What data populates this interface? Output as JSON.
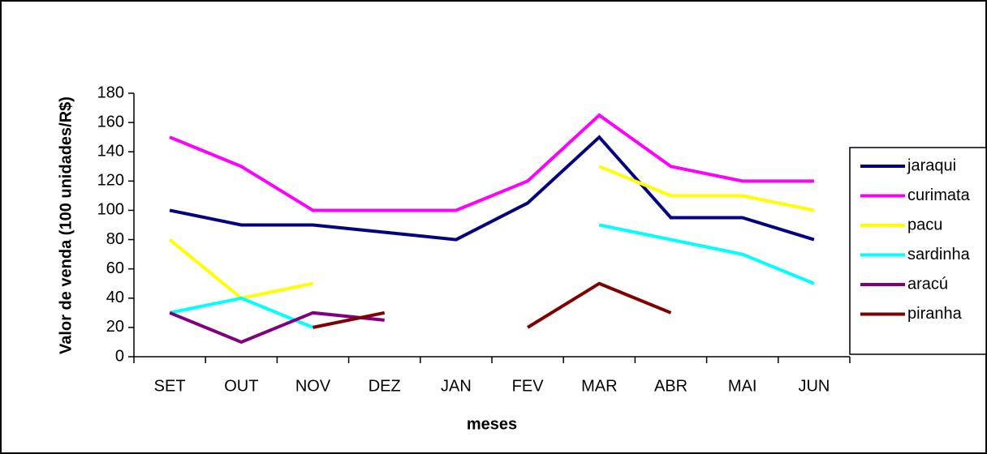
{
  "chart_data": {
    "type": "line",
    "x_label": "meses",
    "y_label": "Valor de venda (100 unidades/R$)",
    "categories": [
      "SET",
      "OUT",
      "NOV",
      "DEZ",
      "JAN",
      "FEV",
      "MAR",
      "ABR",
      "MAI",
      "JUN"
    ],
    "series": [
      {
        "name": "jaraqui",
        "color": "#000080",
        "values": [
          100,
          90,
          90,
          85,
          80,
          105,
          150,
          95,
          95,
          80
        ]
      },
      {
        "name": "curimata",
        "color": "#ff00ff",
        "values": [
          150,
          130,
          100,
          100,
          100,
          120,
          165,
          130,
          120,
          120
        ]
      },
      {
        "name": "pacu",
        "color": "#ffff00",
        "values": [
          80,
          40,
          50,
          null,
          null,
          null,
          130,
          110,
          110,
          100
        ]
      },
      {
        "name": "sardinha",
        "color": "#00ffff",
        "values": [
          30,
          40,
          20,
          null,
          null,
          null,
          90,
          80,
          70,
          50
        ]
      },
      {
        "name": "aracú",
        "color": "#800080",
        "values": [
          30,
          10,
          30,
          25,
          null,
          null,
          null,
          null,
          null,
          null
        ]
      },
      {
        "name": "piranha",
        "color": "#800000",
        "values": [
          null,
          null,
          20,
          30,
          null,
          20,
          50,
          30,
          null,
          null
        ]
      }
    ],
    "ylim": [
      0,
      180
    ],
    "yticks": [
      0,
      20,
      40,
      60,
      80,
      100,
      120,
      140,
      160,
      180
    ],
    "legend": "right"
  }
}
